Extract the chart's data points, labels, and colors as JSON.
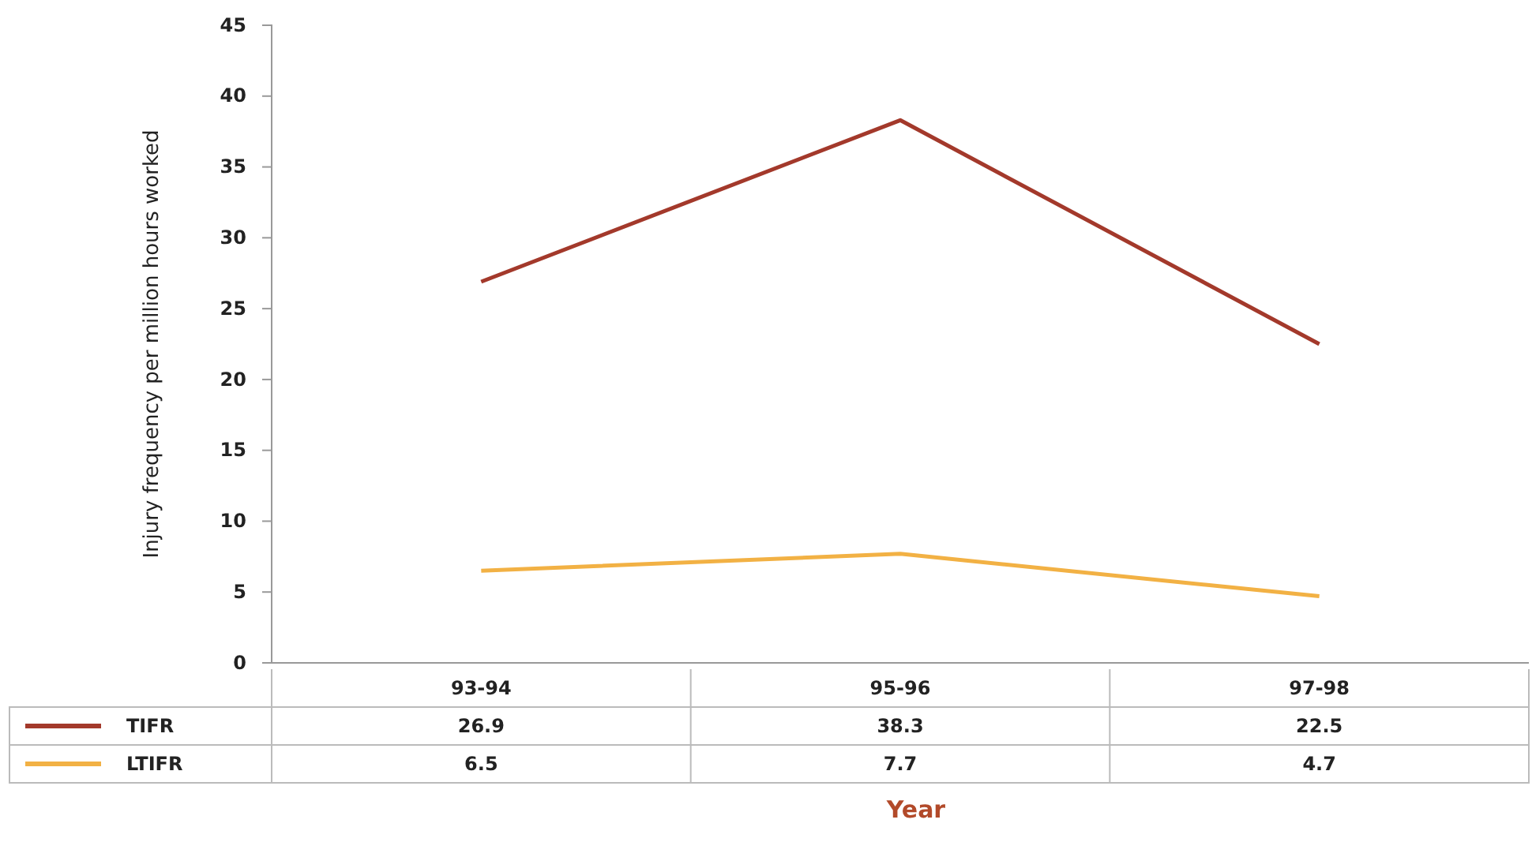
{
  "chart_data": {
    "type": "line",
    "xlabel": "Year",
    "ylabel": "Injury frequency per million hours worked",
    "categories": [
      "93-94",
      "95-96",
      "97-98"
    ],
    "series": [
      {
        "name": "TIFR",
        "color": "#a3392b",
        "values": [
          26.9,
          38.3,
          22.5
        ]
      },
      {
        "name": "LTIFR",
        "color": "#f2b144",
        "values": [
          6.5,
          7.7,
          4.7
        ]
      }
    ],
    "ylim": [
      0,
      45
    ],
    "yticks": [
      0,
      5,
      10,
      15,
      20,
      25,
      30,
      35,
      40,
      45
    ],
    "data_labels": true,
    "legend": "bottom",
    "marker": "none",
    "line_style": "solid",
    "grid": false
  }
}
